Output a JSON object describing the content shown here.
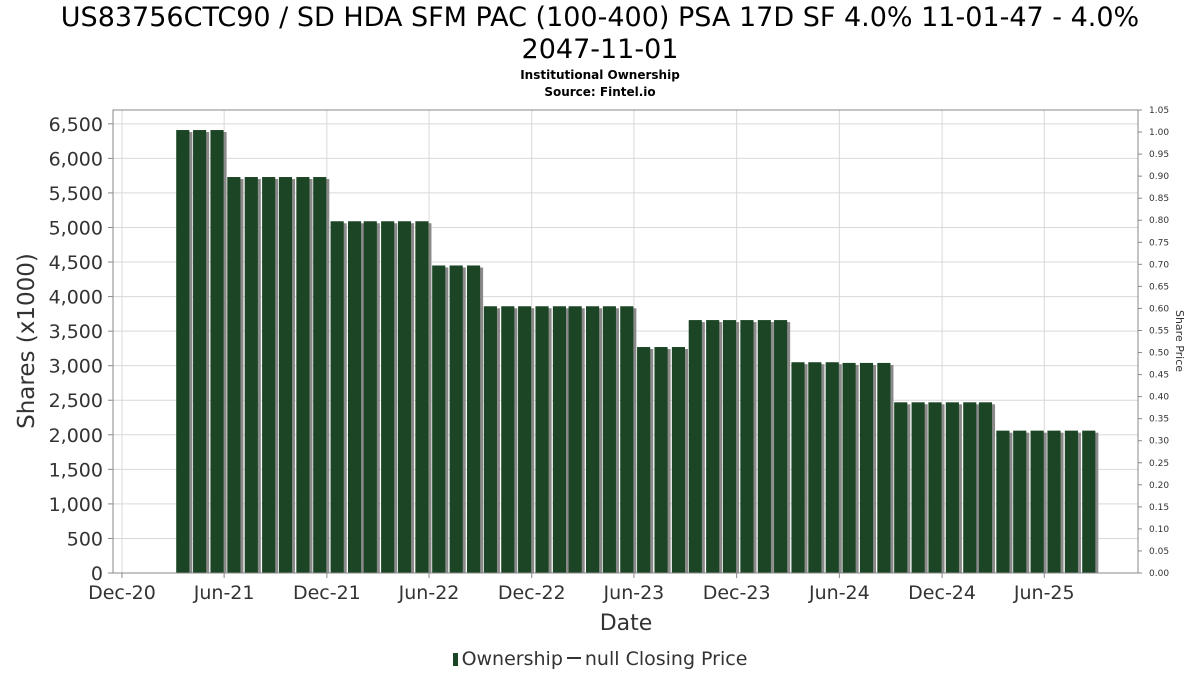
{
  "header": {
    "title_line_1": "US83756CTC90 / SD HDA SFM PAC (100-400) PSA 17D SF 4.0% 11-01-47 - 4.0%",
    "title_line_2": "2047-11-01",
    "subtitle": "Institutional Ownership",
    "source": "Source: Fintel.io"
  },
  "legend": {
    "ownership_label": "Ownership",
    "price_label": "null Closing Price"
  },
  "colors": {
    "bar": "#1b4524",
    "bar_shadow": "#8a8a8a",
    "grid": "#d9d9d9",
    "axis": "#888888"
  },
  "chart_data": {
    "type": "bar",
    "xlabel": "Date",
    "ylabel": "Shares (x1000)",
    "y2label": "Share Price",
    "ylim": [
      0,
      6700
    ],
    "y2lim": [
      0,
      1.05
    ],
    "yticks": [
      0,
      500,
      1000,
      1500,
      2000,
      2500,
      3000,
      3500,
      4000,
      4500,
      5000,
      5500,
      6000,
      6500
    ],
    "yticklabels": [
      "0",
      "500",
      "1,000",
      "1,500",
      "2,000",
      "2,500",
      "3,000",
      "3,500",
      "4,000",
      "4,500",
      "5,000",
      "5,500",
      "6,000",
      "6,500"
    ],
    "y2ticks": [
      0,
      0.05,
      0.1,
      0.15,
      0.2,
      0.25,
      0.3,
      0.35,
      0.4,
      0.45,
      0.5,
      0.55,
      0.6,
      0.65,
      0.7,
      0.75,
      0.8,
      0.85,
      0.9,
      0.95,
      1.0,
      1.05
    ],
    "y2ticklabels": [
      "0.00",
      "0.05",
      "0.10",
      "0.15",
      "0.20",
      "0.25",
      "0.30",
      "0.35",
      "0.40",
      "0.45",
      "0.50",
      "0.55",
      "0.60",
      "0.65",
      "0.70",
      "0.75",
      "0.80",
      "0.85",
      "0.90",
      "0.95",
      "1.00",
      "1.05"
    ],
    "xlim": [
      "2020-11-15",
      "2025-11-15"
    ],
    "xticks": [
      "2020-12-01",
      "2021-06-01",
      "2021-12-01",
      "2022-06-01",
      "2022-12-01",
      "2023-06-01",
      "2023-12-01",
      "2024-06-01",
      "2024-12-01",
      "2025-06-01"
    ],
    "xticklabels": [
      "Dec-20",
      "Jun-21",
      "Dec-21",
      "Jun-22",
      "Dec-22",
      "Jun-23",
      "Dec-23",
      "Jun-24",
      "Dec-24",
      "Jun-25"
    ],
    "grid": true,
    "legend_position": "bottom",
    "series": [
      {
        "name": "Ownership",
        "x": [
          "2021-03-31",
          "2021-04-30",
          "2021-05-31",
          "2021-06-30",
          "2021-07-31",
          "2021-08-31",
          "2021-09-30",
          "2021-10-31",
          "2021-11-30",
          "2021-12-31",
          "2022-01-31",
          "2022-02-28",
          "2022-03-31",
          "2022-04-30",
          "2022-05-31",
          "2022-06-30",
          "2022-07-31",
          "2022-08-31",
          "2022-09-30",
          "2022-10-31",
          "2022-11-30",
          "2022-12-31",
          "2023-01-31",
          "2023-02-28",
          "2023-03-31",
          "2023-04-30",
          "2023-05-31",
          "2023-06-30",
          "2023-07-31",
          "2023-08-31",
          "2023-09-30",
          "2023-10-31",
          "2023-11-30",
          "2023-12-31",
          "2024-01-31",
          "2024-02-29",
          "2024-03-31",
          "2024-04-30",
          "2024-05-31",
          "2024-06-30",
          "2024-07-31",
          "2024-08-31",
          "2024-09-30",
          "2024-10-31",
          "2024-11-30",
          "2024-12-31",
          "2025-01-31",
          "2025-02-28",
          "2025-03-31",
          "2025-04-30",
          "2025-05-31",
          "2025-06-30",
          "2025-07-31",
          "2025-08-31"
        ],
        "values": [
          6410,
          6410,
          6410,
          5730,
          5730,
          5730,
          5730,
          5730,
          5730,
          5090,
          5090,
          5090,
          5090,
          5090,
          5090,
          4450,
          4450,
          4450,
          3860,
          3860,
          3860,
          3860,
          3860,
          3860,
          3860,
          3860,
          3860,
          3270,
          3270,
          3270,
          3660,
          3660,
          3660,
          3660,
          3660,
          3660,
          3050,
          3050,
          3050,
          3040,
          3040,
          3040,
          2470,
          2470,
          2470,
          2470,
          2470,
          2470,
          2060,
          2060,
          2060,
          2060,
          2060,
          2060
        ]
      }
    ]
  }
}
